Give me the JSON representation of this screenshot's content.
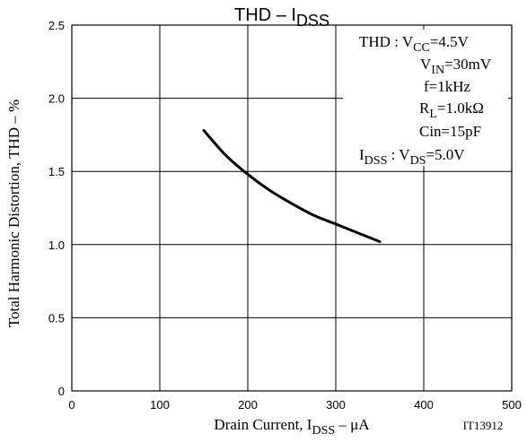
{
  "chart_data": {
    "type": "line",
    "title": {
      "main": "THD – I",
      "sub": "DSS"
    },
    "xlabel": {
      "pre": "Drain Current, I",
      "sub": "DSS",
      "post": " – μA"
    },
    "ylabel": "Total Harmonic Distortion, THD – %",
    "xlim": [
      0,
      500
    ],
    "ylim": [
      0,
      2.5
    ],
    "xticks": [
      0,
      100,
      200,
      300,
      400,
      500
    ],
    "xtick_labels": [
      "0",
      "100",
      "200",
      "300",
      "400",
      "500"
    ],
    "yticks": [
      0,
      0.5,
      1.0,
      1.5,
      2.0,
      2.5
    ],
    "ytick_labels": [
      "0",
      "0.5",
      "1.0",
      "1.5",
      "2.0",
      "2.5"
    ],
    "grid": true,
    "series": [
      {
        "x": [
          150,
          175,
          200,
          225,
          250,
          275,
          300,
          325,
          350
        ],
        "y": [
          1.78,
          1.61,
          1.48,
          1.37,
          1.28,
          1.2,
          1.14,
          1.08,
          1.02
        ]
      }
    ],
    "conditions": [
      {
        "pre": "THD : V",
        "sub": "CC",
        "post": "=4.5V"
      },
      {
        "pre": "V",
        "sub": "IN",
        "post": "=30mV"
      },
      {
        "pre": "f=1kHz",
        "sub": "",
        "post": ""
      },
      {
        "pre": "R",
        "sub": "L",
        "post": "=1.0kΩ"
      },
      {
        "pre": "Cin=15pF",
        "sub": "",
        "post": ""
      },
      {
        "pre": "I",
        "sub": "DSS",
        "post": " : V",
        "sub2": "DS",
        "post2": "=5.0V"
      }
    ],
    "figure_id": "IT13912"
  }
}
